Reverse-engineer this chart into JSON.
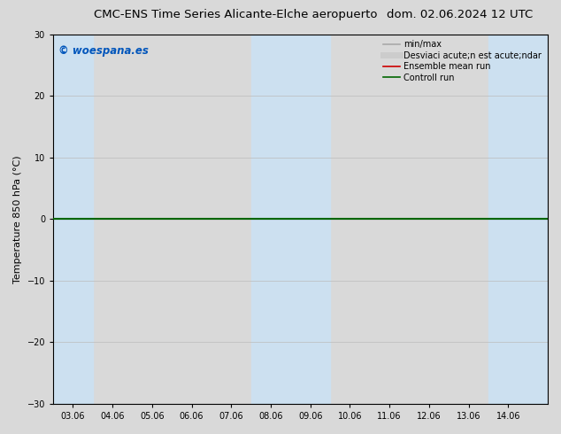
{
  "title": "CMC-ENS Time Series Alicante-Elche aeropuerto",
  "date_str": "dom. 02.06.2024 12 UTC",
  "ylabel": "Temperature 850 hPa (°C)",
  "watermark": "© woespana.es",
  "ylim": [
    -30,
    30
  ],
  "yticks": [
    -30,
    -20,
    -10,
    0,
    10,
    20,
    30
  ],
  "x_labels": [
    "03.06",
    "04.06",
    "05.06",
    "06.06",
    "07.06",
    "08.06",
    "09.06",
    "10.06",
    "11.06",
    "12.06",
    "13.06",
    "14.06"
  ],
  "n_points": 12,
  "zero_line_value": 0,
  "bg_color": "#d9d9d9",
  "plot_bg_color": "#d9d9d9",
  "shade_color": "#cce0f0",
  "legend_items": [
    {
      "label": "min/max",
      "color": "#aaaaaa",
      "lw": 1.2
    },
    {
      "label": "Desviaci acute;n est acute;ndar",
      "color": "#cccccc",
      "lw": 5
    },
    {
      "label": "Ensemble mean run",
      "color": "#cc0000",
      "lw": 1.2
    },
    {
      "label": "Controll run",
      "color": "#006600",
      "lw": 1.2
    }
  ],
  "control_run_value": 0,
  "control_run_color": "#006600",
  "control_run_lw": 1.5,
  "zero_line_color": "#000000",
  "zero_line_lw": 0.8,
  "tick_fontsize": 7,
  "title_fontsize": 9.5,
  "date_fontsize": 9.5,
  "ylabel_fontsize": 8,
  "watermark_color": "#0055bb",
  "watermark_fontsize": 8.5,
  "legend_fontsize": 7
}
